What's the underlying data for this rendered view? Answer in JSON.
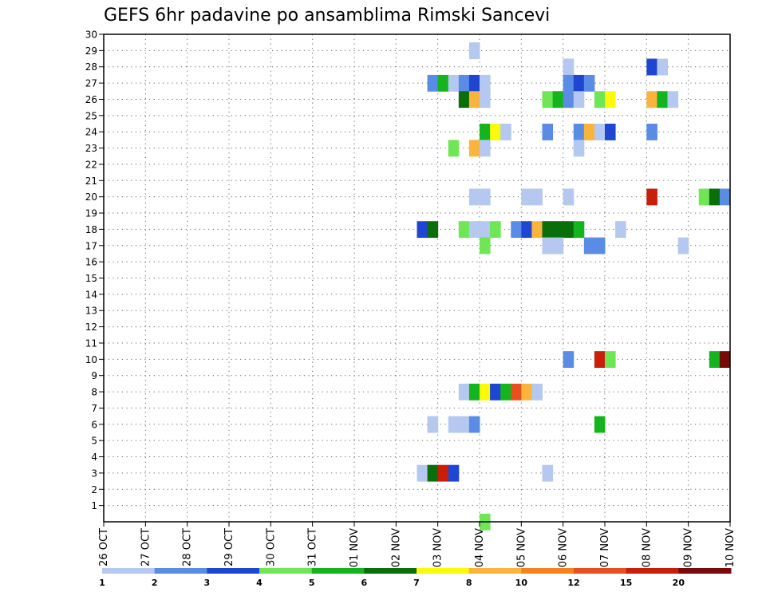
{
  "chart_data": {
    "type": "heatmap",
    "title": "GEFS 6hr padavine po ansamblima Rimski Sancevi",
    "xlabel": "",
    "ylabel": "",
    "x_tick_labels": [
      "26 OCT",
      "27 OCT",
      "28 OCT",
      "29 OCT",
      "30 OCT",
      "31 OCT",
      "01 NOV",
      "02 NOV",
      "03 NOV",
      "04 NOV",
      "05 NOV",
      "06 NOV",
      "07 NOV",
      "08 NOV",
      "09 NOV",
      "10 NOV"
    ],
    "y_tick_labels": [
      "1",
      "2",
      "3",
      "4",
      "5",
      "6",
      "7",
      "8",
      "9",
      "10",
      "11",
      "12",
      "13",
      "14",
      "15",
      "16",
      "17",
      "18",
      "19",
      "20",
      "21",
      "22",
      "23",
      "24",
      "25",
      "26",
      "27",
      "28",
      "29",
      "30"
    ],
    "x_unit": "6-hour step (0 = 26 OCT 00Z, 4 steps per day)",
    "xlim": [
      0,
      60
    ],
    "ylim": [
      0,
      30
    ],
    "grid": true,
    "legend_position": "bottom",
    "color_bins": {
      "labels": [
        "1",
        "2",
        "3",
        "4",
        "5",
        "6",
        "7",
        "8",
        "10",
        "12",
        "15",
        "20"
      ],
      "colors": [
        "#b4c8f0",
        "#5a8ce6",
        "#1e46d2",
        "#6ee656",
        "#14b41e",
        "#0a6e0a",
        "#fafa0a",
        "#fab43c",
        "#f5821e",
        "#e6501e",
        "#c81e0a",
        "#780a0a"
      ]
    },
    "cells": [
      {
        "x": 35,
        "y": 29,
        "v": 1
      },
      {
        "x": 44,
        "y": 28,
        "v": 1
      },
      {
        "x": 52,
        "y": 28,
        "v": 3
      },
      {
        "x": 53,
        "y": 28,
        "v": 1
      },
      {
        "x": 31,
        "y": 27,
        "v": 2
      },
      {
        "x": 32,
        "y": 27,
        "v": 5
      },
      {
        "x": 33,
        "y": 27,
        "v": 1
      },
      {
        "x": 34,
        "y": 27,
        "v": 2
      },
      {
        "x": 35,
        "y": 27,
        "v": 3
      },
      {
        "x": 36,
        "y": 27,
        "v": 1
      },
      {
        "x": 44,
        "y": 27,
        "v": 2
      },
      {
        "x": 45,
        "y": 27,
        "v": 3
      },
      {
        "x": 46,
        "y": 27,
        "v": 2
      },
      {
        "x": 34,
        "y": 26,
        "v": 6
      },
      {
        "x": 35,
        "y": 26,
        "v": 8
      },
      {
        "x": 36,
        "y": 26,
        "v": 1
      },
      {
        "x": 42,
        "y": 26,
        "v": 4
      },
      {
        "x": 43,
        "y": 26,
        "v": 5
      },
      {
        "x": 44,
        "y": 26,
        "v": 2
      },
      {
        "x": 45,
        "y": 26,
        "v": 1
      },
      {
        "x": 47,
        "y": 26,
        "v": 4
      },
      {
        "x": 48,
        "y": 26,
        "v": 7
      },
      {
        "x": 52,
        "y": 26,
        "v": 8
      },
      {
        "x": 53,
        "y": 26,
        "v": 5
      },
      {
        "x": 54,
        "y": 26,
        "v": 1
      },
      {
        "x": 36,
        "y": 24,
        "v": 5
      },
      {
        "x": 37,
        "y": 24,
        "v": 7
      },
      {
        "x": 38,
        "y": 24,
        "v": 1
      },
      {
        "x": 42,
        "y": 24,
        "v": 2
      },
      {
        "x": 45,
        "y": 24,
        "v": 2
      },
      {
        "x": 46,
        "y": 24,
        "v": 8
      },
      {
        "x": 47,
        "y": 24,
        "v": 1
      },
      {
        "x": 48,
        "y": 24,
        "v": 3
      },
      {
        "x": 52,
        "y": 24,
        "v": 2
      },
      {
        "x": 33,
        "y": 23,
        "v": 4
      },
      {
        "x": 35,
        "y": 23,
        "v": 8
      },
      {
        "x": 36,
        "y": 23,
        "v": 1
      },
      {
        "x": 45,
        "y": 23,
        "v": 1
      },
      {
        "x": 35,
        "y": 20,
        "v": 1
      },
      {
        "x": 36,
        "y": 20,
        "v": 1
      },
      {
        "x": 40,
        "y": 20,
        "v": 1
      },
      {
        "x": 41,
        "y": 20,
        "v": 1
      },
      {
        "x": 44,
        "y": 20,
        "v": 1
      },
      {
        "x": 52,
        "y": 20,
        "v": 15
      },
      {
        "x": 57,
        "y": 20,
        "v": 4
      },
      {
        "x": 58,
        "y": 20,
        "v": 6
      },
      {
        "x": 59,
        "y": 20,
        "v": 2
      },
      {
        "x": 30,
        "y": 18,
        "v": 3
      },
      {
        "x": 31,
        "y": 18,
        "v": 6
      },
      {
        "x": 34,
        "y": 18,
        "v": 4
      },
      {
        "x": 35,
        "y": 18,
        "v": 1
      },
      {
        "x": 36,
        "y": 18,
        "v": 1
      },
      {
        "x": 37,
        "y": 18,
        "v": 4
      },
      {
        "x": 39,
        "y": 18,
        "v": 2
      },
      {
        "x": 40,
        "y": 18,
        "v": 3
      },
      {
        "x": 41,
        "y": 18,
        "v": 8
      },
      {
        "x": 42,
        "y": 18,
        "v": 6
      },
      {
        "x": 43,
        "y": 18,
        "v": 6
      },
      {
        "x": 44,
        "y": 18,
        "v": 6
      },
      {
        "x": 45,
        "y": 18,
        "v": 5
      },
      {
        "x": 49,
        "y": 18,
        "v": 1
      },
      {
        "x": 36,
        "y": 17,
        "v": 4
      },
      {
        "x": 42,
        "y": 17,
        "v": 1
      },
      {
        "x": 43,
        "y": 17,
        "v": 1
      },
      {
        "x": 46,
        "y": 17,
        "v": 2
      },
      {
        "x": 47,
        "y": 17,
        "v": 2
      },
      {
        "x": 55,
        "y": 17,
        "v": 1
      },
      {
        "x": 44,
        "y": 10,
        "v": 2
      },
      {
        "x": 47,
        "y": 10,
        "v": 15
      },
      {
        "x": 48,
        "y": 10,
        "v": 4
      },
      {
        "x": 58,
        "y": 10,
        "v": 5
      },
      {
        "x": 59,
        "y": 10,
        "v": 20
      },
      {
        "x": 34,
        "y": 8,
        "v": 1
      },
      {
        "x": 35,
        "y": 8,
        "v": 5
      },
      {
        "x": 36,
        "y": 8,
        "v": 7
      },
      {
        "x": 37,
        "y": 8,
        "v": 3
      },
      {
        "x": 38,
        "y": 8,
        "v": 5
      },
      {
        "x": 39,
        "y": 8,
        "v": 12
      },
      {
        "x": 40,
        "y": 8,
        "v": 8
      },
      {
        "x": 41,
        "y": 8,
        "v": 1
      },
      {
        "x": 31,
        "y": 6,
        "v": 1
      },
      {
        "x": 33,
        "y": 6,
        "v": 1
      },
      {
        "x": 34,
        "y": 6,
        "v": 1
      },
      {
        "x": 35,
        "y": 6,
        "v": 2
      },
      {
        "x": 47,
        "y": 6,
        "v": 5
      },
      {
        "x": 30,
        "y": 3,
        "v": 1
      },
      {
        "x": 31,
        "y": 3,
        "v": 6
      },
      {
        "x": 32,
        "y": 3,
        "v": 15
      },
      {
        "x": 33,
        "y": 3,
        "v": 3
      },
      {
        "x": 42,
        "y": 3,
        "v": 1
      },
      {
        "x": 36,
        "y": 0,
        "v": 4
      }
    ]
  }
}
